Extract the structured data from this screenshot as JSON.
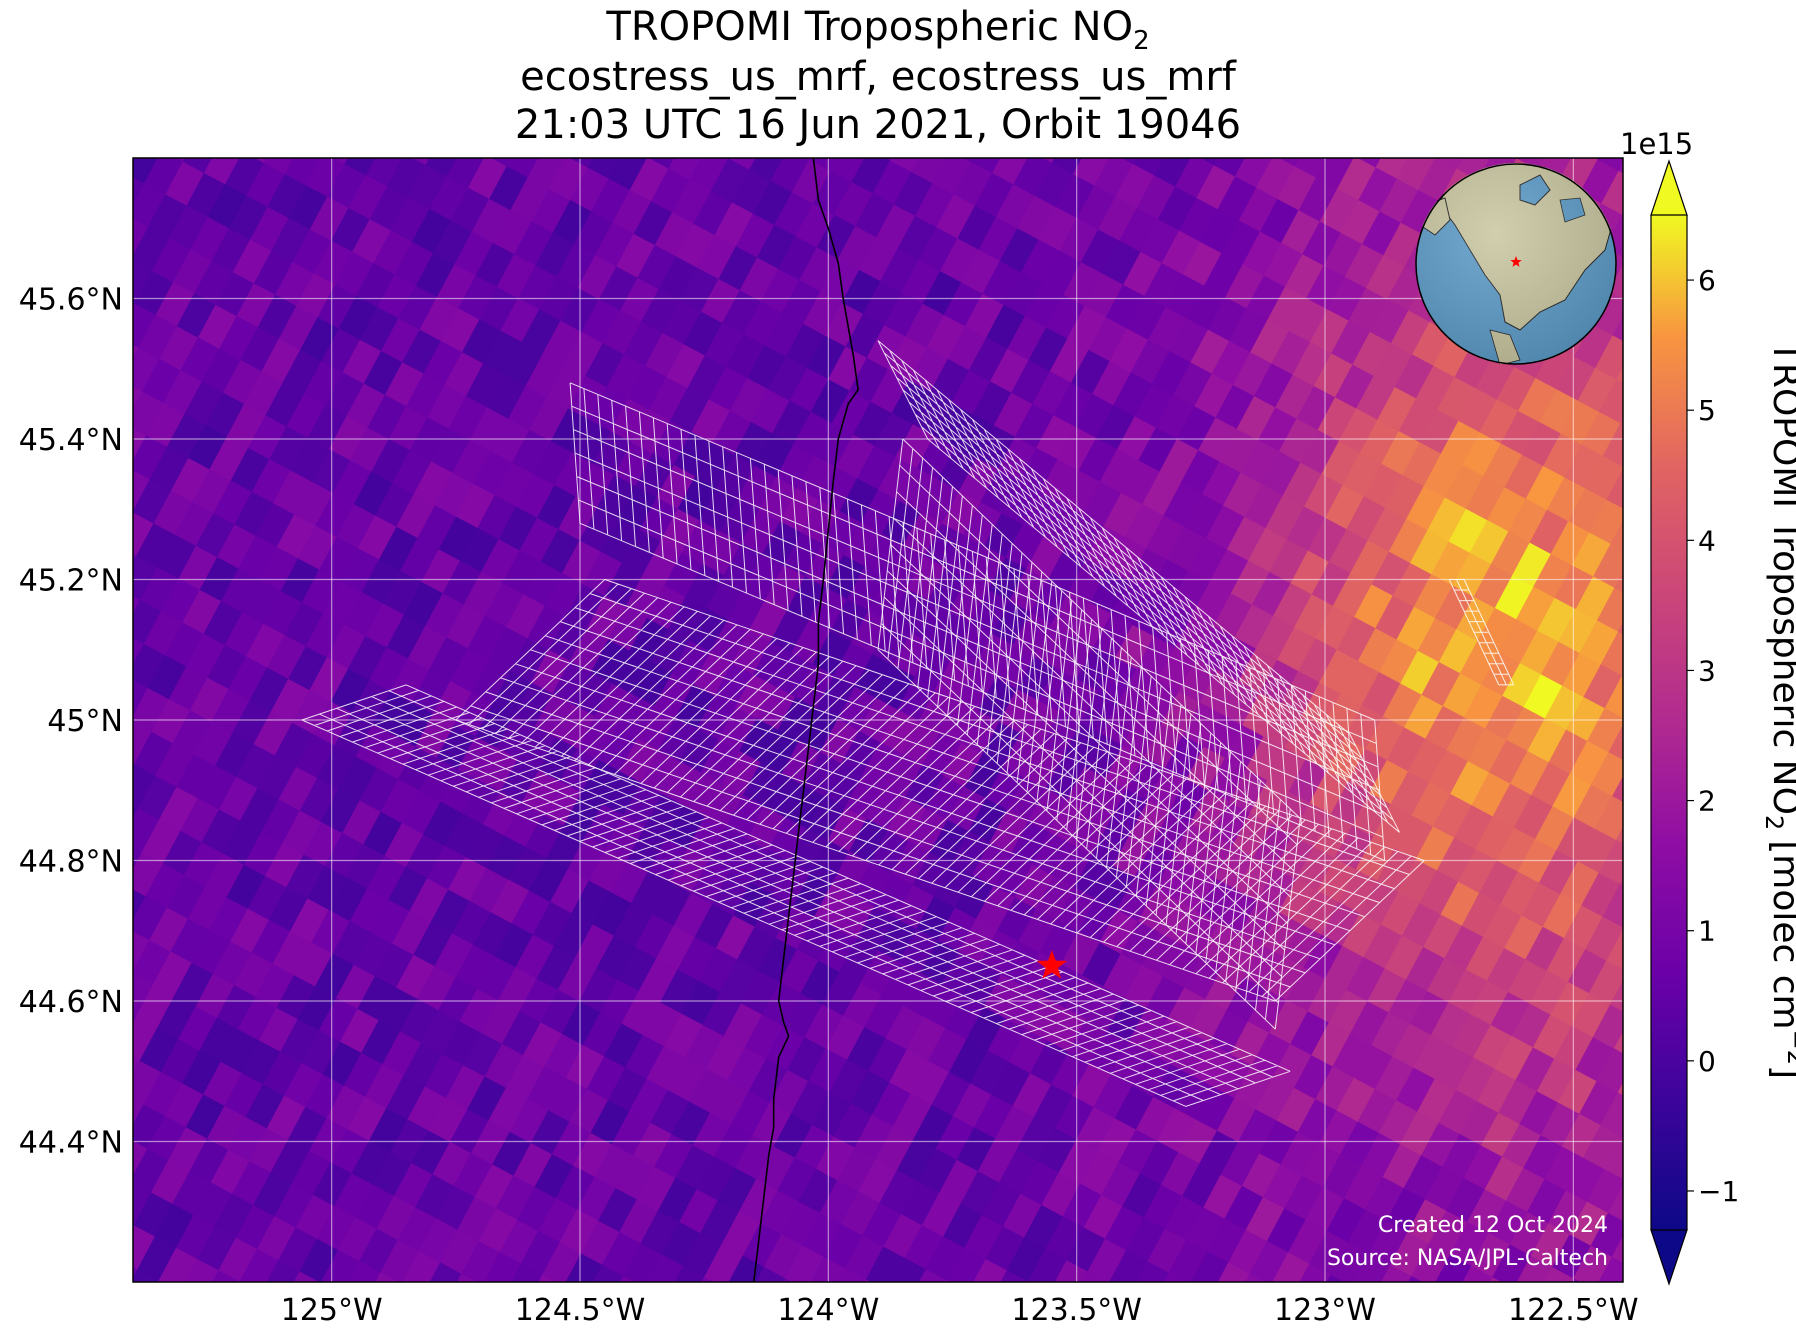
{
  "title": {
    "line1_main": "TROPOMI Tropospheric NO",
    "line1_sub": "2",
    "line2": "ecostress_us_mrf, ecostress_us_mrf",
    "line3": "21:03 UTC 16 Jun 2021, Orbit 19046"
  },
  "map": {
    "lon_range": [
      -125.4,
      -122.4
    ],
    "lat_range": [
      44.2,
      45.8
    ],
    "x_ticks": [
      {
        "value": -125.0,
        "label": "125°W"
      },
      {
        "value": -124.5,
        "label": "124.5°W"
      },
      {
        "value": -124.0,
        "label": "124°W"
      },
      {
        "value": -123.5,
        "label": "123.5°W"
      },
      {
        "value": -123.0,
        "label": "123°W"
      },
      {
        "value": -122.5,
        "label": "122.5°W"
      }
    ],
    "y_ticks": [
      {
        "value": 45.6,
        "label": "45.6°N"
      },
      {
        "value": 45.4,
        "label": "45.4°N"
      },
      {
        "value": 45.2,
        "label": "45.2°N"
      },
      {
        "value": 45.0,
        "label": "45°N"
      },
      {
        "value": 44.8,
        "label": "44.8°N"
      },
      {
        "value": 44.6,
        "label": "44.6°N"
      },
      {
        "value": 44.4,
        "label": "44.4°N"
      }
    ],
    "gridlines": true,
    "site_marker": {
      "lon": -123.55,
      "lat": 44.65,
      "symbol": "star",
      "color": "#ff0000"
    },
    "coastline_color": "#000000",
    "swath_outline_color": "#ffffff",
    "hotspot": {
      "lon": -122.65,
      "lat": 45.1
    }
  },
  "colorbar": {
    "label_main": "TROPOMI Tropospheric NO",
    "label_sub": "2",
    "label_units": "[molec cm",
    "label_exp": "−2",
    "label_close": "]",
    "multiplier": "1e15",
    "ticks": [
      {
        "value": -1,
        "label": "−1"
      },
      {
        "value": 0,
        "label": "0"
      },
      {
        "value": 1,
        "label": "1"
      },
      {
        "value": 2,
        "label": "2"
      },
      {
        "value": 3,
        "label": "3"
      },
      {
        "value": 4,
        "label": "4"
      },
      {
        "value": 5,
        "label": "5"
      },
      {
        "value": 6,
        "label": "6"
      }
    ],
    "range": [
      -1.3,
      6.5
    ],
    "colormap": "plasma",
    "extend": "both"
  },
  "footer": {
    "created": "Created 12 Oct 2024",
    "source": "Source: NASA/JPL-Caltech"
  },
  "inset_globe": {
    "ocean_color": "#5b9bc8",
    "land_color": "#c9c6a0",
    "marker_color": "#ff0000"
  }
}
